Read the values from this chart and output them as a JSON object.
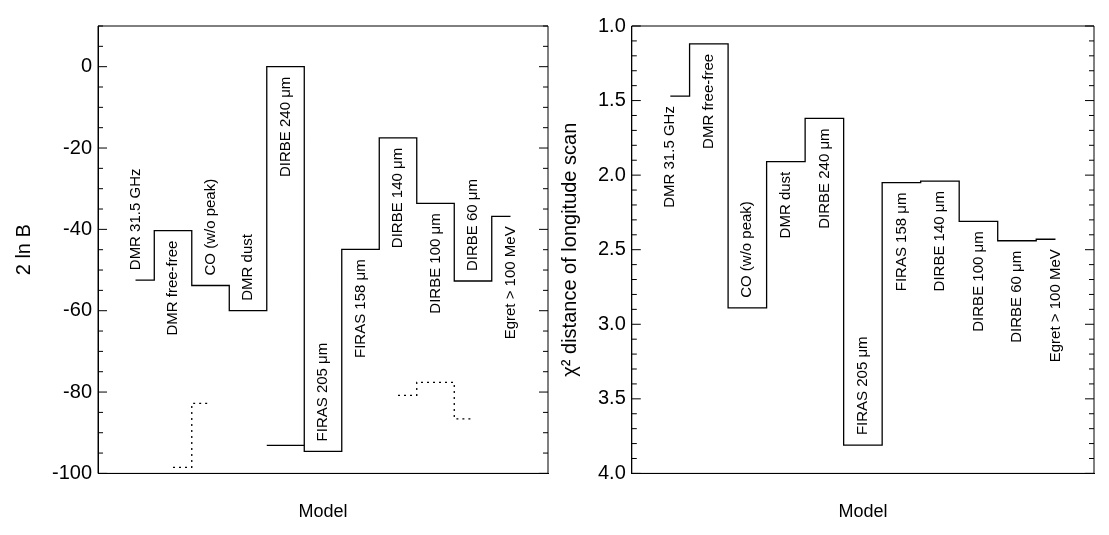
{
  "chart_data": [
    {
      "type": "step",
      "xlabel": "Model",
      "ylabel": "2 ln B",
      "categories": [
        "DMR 31.5 GHz",
        "DMR free-free",
        "CO (w/o peak)",
        "DMR dust",
        "DIRBE 240 μm",
        "FIRAS 205 μm",
        "FIRAS 158 μm",
        "DIRBE 140 μm",
        "DIRBE 100 μm",
        "DIRBE 60 μm",
        "Egret > 100 MeV"
      ],
      "series": [
        {
          "color": "#000000",
          "line_style": "solid",
          "values": [
            -52.5,
            -40.3,
            -53.8,
            -60,
            0,
            -94.6,
            -44.9,
            -17.5,
            -33.6,
            -52.7,
            -36.8
          ]
        },
        {
          "color": "#000000",
          "line_style": "dotted",
          "values": [
            null,
            -98.5,
            -82.8,
            null,
            -93.1,
            null,
            null,
            -80.8,
            -77.6,
            -86.6,
            null
          ]
        }
      ],
      "ylim": [
        -100,
        10
      ],
      "yticks": [
        -100,
        {
          "value": -95,
          "label": null
        },
        {
          "value": -90,
          "label": null
        },
        {
          "value": -85,
          "label": null
        },
        -80,
        {
          "value": -75,
          "label": null
        },
        {
          "value": -70,
          "label": null
        },
        {
          "value": -65,
          "label": null
        },
        -60,
        {
          "value": -55,
          "label": null
        },
        {
          "value": -50,
          "label": null
        },
        {
          "value": -45,
          "label": null
        },
        -40,
        {
          "value": -35,
          "label": null
        },
        {
          "value": -30,
          "label": null
        },
        {
          "value": -25,
          "label": null
        },
        -20,
        {
          "value": -15,
          "label": null
        },
        {
          "value": -10,
          "label": null
        },
        {
          "value": -5,
          "label": null
        },
        0,
        {
          "value": 5,
          "label": null
        },
        {
          "value": 10,
          "label": null
        }
      ],
      "grid": false,
      "legend": false
    },
    {
      "type": "step",
      "xlabel": "Model",
      "ylabel": "χ² distance of longitude scan",
      "categories": [
        "DMR 31.5 GHz",
        "DMR free-free",
        "CO (w/o peak)",
        "DMR dust",
        "DIRBE 240 μm",
        "FIRAS 205 μm",
        "FIRAS 158 μm",
        "DIRBE 140 μm",
        "DIRBE 100 μm",
        "DIRBE 60 μm",
        "Egret > 100 MeV"
      ],
      "series": [
        {
          "color": "#000000",
          "line_style": "solid",
          "values": [
            1.47,
            1.12,
            2.89,
            1.91,
            1.62,
            3.81,
            2.05,
            2.04,
            2.31,
            2.44,
            2.43
          ]
        }
      ],
      "ylim": [
        4.0,
        1.0
      ],
      "yticks": [
        {
          "value": 4.0,
          "label": "4.0"
        },
        {
          "value": 3.9,
          "label": null
        },
        {
          "value": 3.8,
          "label": null
        },
        {
          "value": 3.7,
          "label": null
        },
        {
          "value": 3.6,
          "label": null
        },
        {
          "value": 3.5,
          "label": "3.5"
        },
        {
          "value": 3.4,
          "label": null
        },
        {
          "value": 3.3,
          "label": null
        },
        {
          "value": 3.2,
          "label": null
        },
        {
          "value": 3.1,
          "label": null
        },
        {
          "value": 3.0,
          "label": "3.0"
        },
        {
          "value": 2.9,
          "label": null
        },
        {
          "value": 2.8,
          "label": null
        },
        {
          "value": 2.7,
          "label": null
        },
        {
          "value": 2.6,
          "label": null
        },
        {
          "value": 2.5,
          "label": "2.5"
        },
        {
          "value": 2.4,
          "label": null
        },
        {
          "value": 2.3,
          "label": null
        },
        {
          "value": 2.2,
          "label": null
        },
        {
          "value": 2.1,
          "label": null
        },
        {
          "value": 2.0,
          "label": "2.0"
        },
        {
          "value": 1.9,
          "label": null
        },
        {
          "value": 1.8,
          "label": null
        },
        {
          "value": 1.7,
          "label": null
        },
        {
          "value": 1.6,
          "label": null
        },
        {
          "value": 1.5,
          "label": "1.5"
        },
        {
          "value": 1.4,
          "label": null
        },
        {
          "value": 1.3,
          "label": null
        },
        {
          "value": 1.2,
          "label": null
        },
        {
          "value": 1.1,
          "label": null
        },
        {
          "value": 1.0,
          "label": "1.0"
        }
      ],
      "grid": false,
      "legend": false
    }
  ]
}
